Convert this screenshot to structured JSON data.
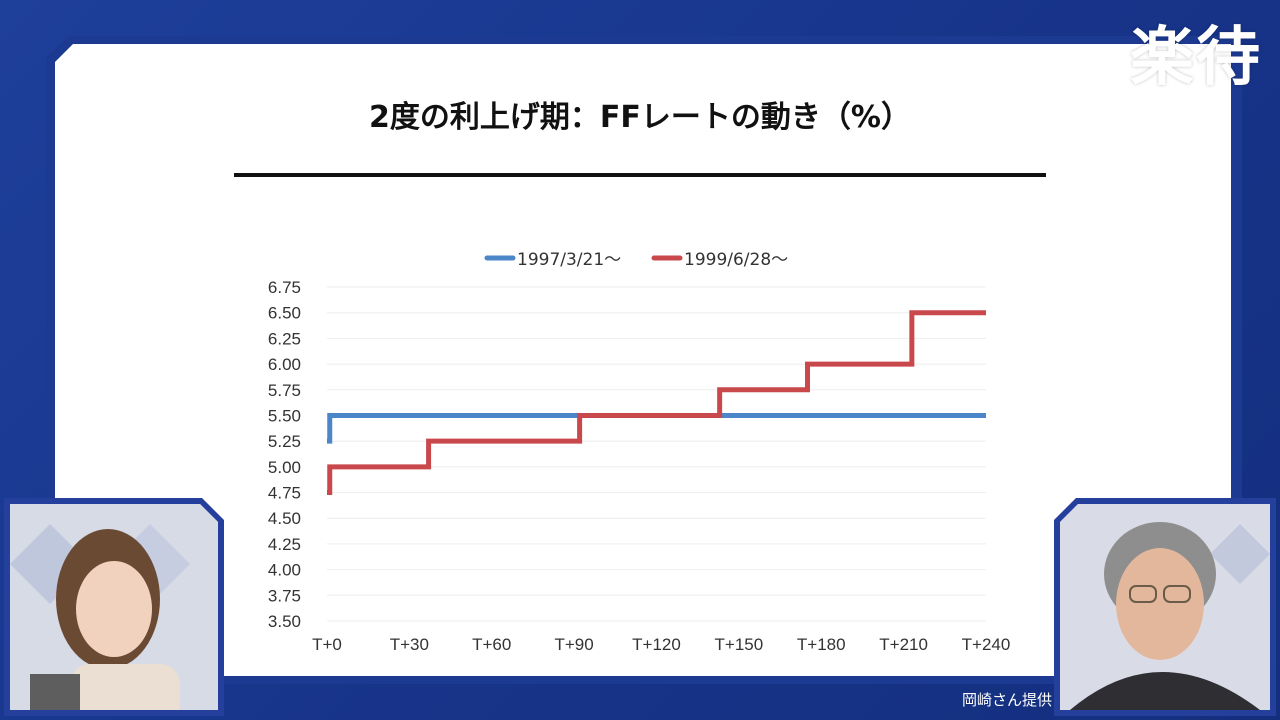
{
  "brand": {
    "logo_text": "楽待"
  },
  "slide": {
    "title": "2度の利上げ期：FFレートの動き（%）"
  },
  "credit": "岡崎さん提供",
  "chart_data": {
    "type": "line",
    "title": "2度の利上げ期：FFレートの動き（%）",
    "x_tick_labels": [
      "T+0",
      "T+30",
      "T+60",
      "T+90",
      "T+120",
      "T+150",
      "T+180",
      "T+210",
      "T+240"
    ],
    "xlim": [
      0,
      240
    ],
    "ylim": [
      3.5,
      6.75
    ],
    "y_ticks": [
      "6.75",
      "6.50",
      "6.25",
      "6.00",
      "5.75",
      "5.50",
      "5.25",
      "5.00",
      "4.75",
      "4.50",
      "4.25",
      "4.00",
      "3.75",
      "3.50"
    ],
    "grid": true,
    "legend_position": "top",
    "series": [
      {
        "name": "1997/3/21〜",
        "color": "#4a86c8",
        "x": [
          0,
          1,
          1,
          240
        ],
        "y": [
          5.25,
          5.25,
          5.5,
          5.5
        ]
      },
      {
        "name": "1999/6/28〜",
        "color": "#c9484c",
        "x": [
          0,
          1,
          1,
          37,
          37,
          92,
          92,
          143,
          143,
          175,
          175,
          213,
          213,
          240
        ],
        "y": [
          4.75,
          4.75,
          5.0,
          5.0,
          5.25,
          5.25,
          5.5,
          5.5,
          5.75,
          5.75,
          6.0,
          6.0,
          6.5,
          6.5
        ]
      }
    ]
  }
}
